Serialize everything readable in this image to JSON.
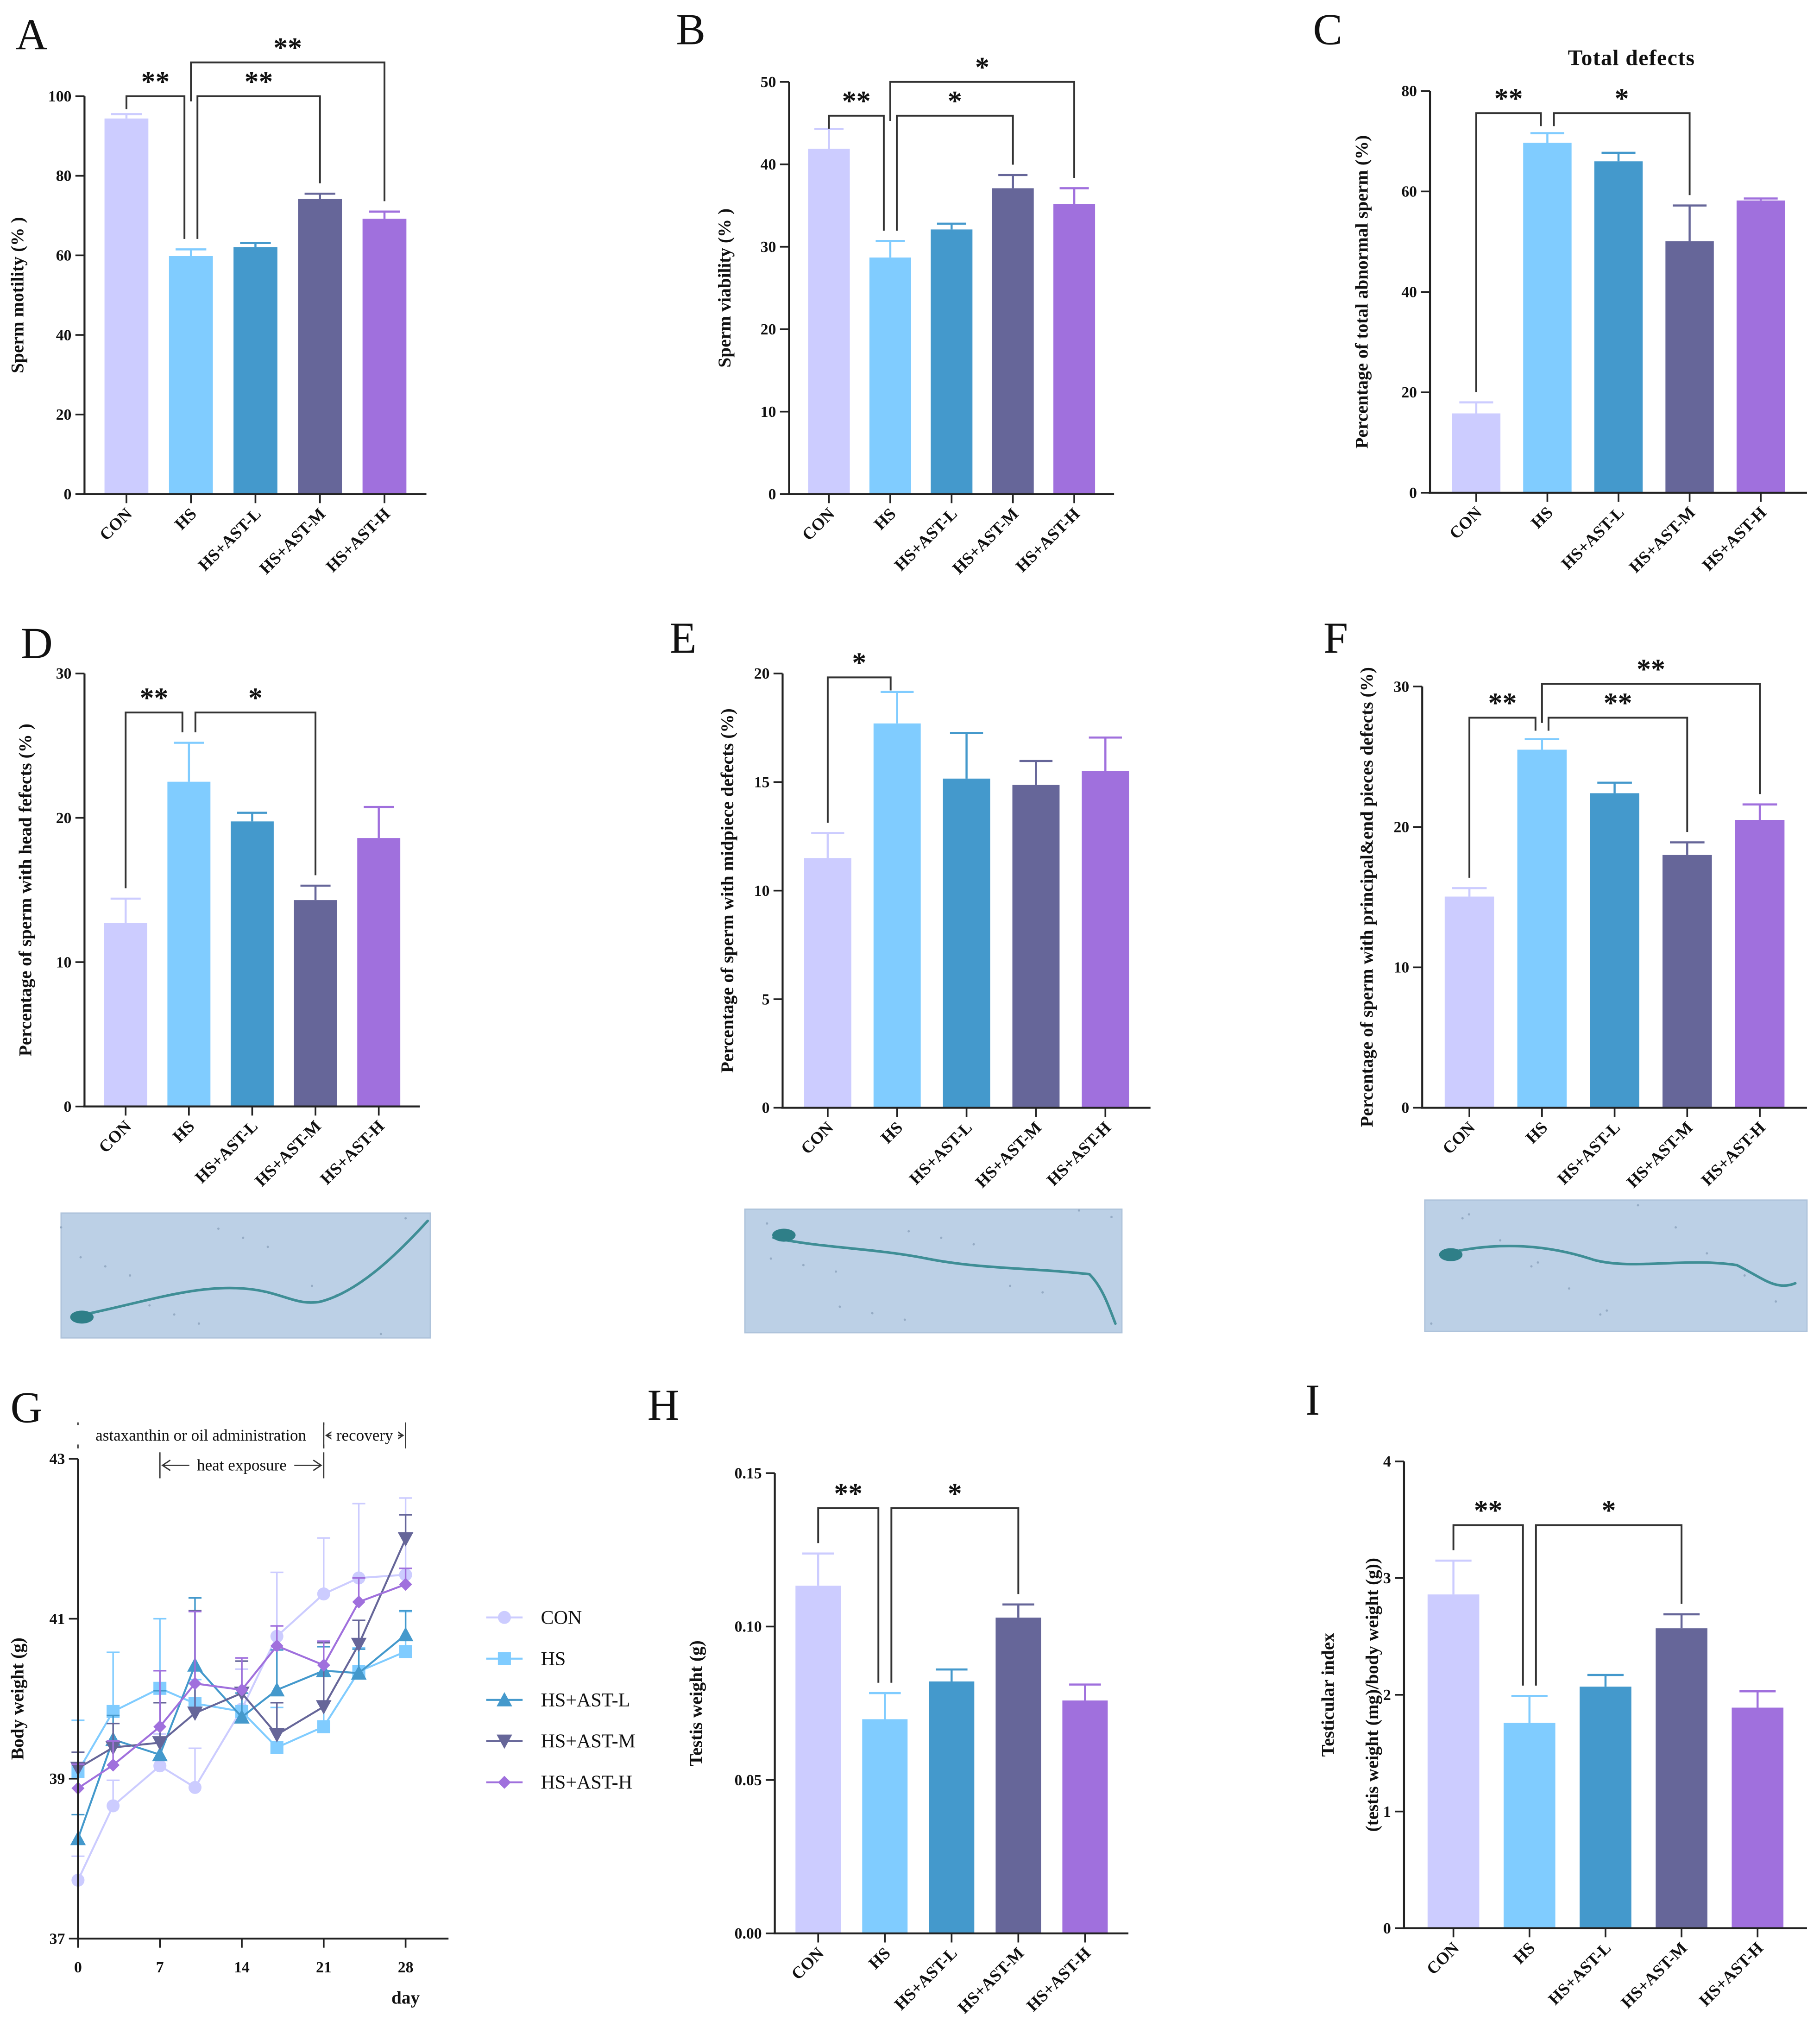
{
  "groups": [
    "CON",
    "HS",
    "HS+AST-L",
    "HS+AST-M",
    "HS+AST-H"
  ],
  "colors": {
    "CON": "#CCCCFF",
    "HS": "#80CCFF",
    "HS+AST-L": "#4499CC",
    "HS+AST-M": "#666699",
    "HS+AST-H": "#A070DD"
  },
  "chart_data": [
    {
      "panel": "A",
      "type": "bar",
      "title": "",
      "ylabel": [
        "Sperm motility (% )"
      ],
      "ylim": [
        0,
        100
      ],
      "ytick_labels": [
        "0",
        "20",
        "40",
        "60",
        "80",
        "100"
      ],
      "yticks": [
        0,
        20,
        40,
        60,
        80,
        100
      ],
      "categories": [
        "CON",
        "HS",
        "HS+AST-L",
        "HS+AST-M",
        "HS+AST-H"
      ],
      "values": [
        94.4,
        59.8,
        62.1,
        74.2,
        69.2
      ],
      "errors": [
        1.1,
        1.7,
        1.0,
        1.3,
        1.8
      ],
      "comparisons": [
        {
          "from": "CON",
          "to": "HS",
          "label": "**"
        },
        {
          "from": "HS",
          "to": "HS+AST-M",
          "label": "**"
        },
        {
          "from": "HS",
          "to": "HS+AST-H",
          "label": "**"
        }
      ]
    },
    {
      "panel": "B",
      "type": "bar",
      "title": "",
      "ylabel": [
        "Sperm viability (% )"
      ],
      "ylim": [
        0,
        50
      ],
      "ytick_labels": [
        "0",
        "10",
        "20",
        "30",
        "40",
        "50"
      ],
      "yticks": [
        0,
        10,
        20,
        30,
        40,
        50
      ],
      "categories": [
        "CON",
        "HS",
        "HS+AST-L",
        "HS+AST-M",
        "HS+AST-H"
      ],
      "values": [
        41.9,
        28.7,
        32.1,
        37.1,
        35.2
      ],
      "errors": [
        2.4,
        2.0,
        0.7,
        1.6,
        1.9
      ],
      "comparisons": [
        {
          "from": "CON",
          "to": "HS",
          "label": "**"
        },
        {
          "from": "HS",
          "to": "HS+AST-M",
          "label": "*"
        },
        {
          "from": "HS",
          "to": "HS+AST-H",
          "label": "*"
        }
      ]
    },
    {
      "panel": "C",
      "type": "bar",
      "title": "Total defects",
      "ylabel": [
        "Percentage of total abnormal sperm (%)"
      ],
      "ylim": [
        0,
        80
      ],
      "ytick_labels": [
        "0",
        "20",
        "40",
        "60",
        "80"
      ],
      "yticks": [
        0,
        20,
        40,
        60,
        80
      ],
      "categories": [
        "CON",
        "HS",
        "HS+AST-L",
        "HS+AST-M",
        "HS+AST-H"
      ],
      "values": [
        15.8,
        69.7,
        66.0,
        50.1,
        58.2
      ],
      "errors": [
        2.2,
        1.9,
        1.7,
        7.1,
        0.4
      ],
      "comparisons": [
        {
          "from": "CON",
          "to": "HS",
          "label": "**"
        },
        {
          "from": "HS",
          "to": "HS+AST-M",
          "label": "*"
        }
      ]
    },
    {
      "panel": "D",
      "type": "bar",
      "title": "",
      "ylabel": [
        "Percentage of sperm with head fefects (% )"
      ],
      "ylim": [
        0,
        30
      ],
      "ytick_labels": [
        "0",
        "10",
        "20",
        "30"
      ],
      "yticks": [
        0,
        10,
        20,
        30
      ],
      "categories": [
        "CON",
        "HS",
        "HS+AST-L",
        "HS+AST-M",
        "HS+AST-H"
      ],
      "values": [
        12.7,
        22.5,
        19.75,
        14.3,
        18.6
      ],
      "errors": [
        1.7,
        2.7,
        0.6,
        1.0,
        2.15
      ],
      "comparisons": [
        {
          "from": "CON",
          "to": "HS",
          "label": "**"
        },
        {
          "from": "HS",
          "to": "HS+AST-M",
          "label": "*"
        }
      ]
    },
    {
      "panel": "E",
      "type": "bar",
      "title": "",
      "ylabel": [
        "Percentage of sperm with midpiece defects (%)"
      ],
      "ylim": [
        0,
        20
      ],
      "ytick_labels": [
        "0",
        "5",
        "10",
        "15",
        "20"
      ],
      "yticks": [
        0,
        5,
        10,
        15,
        20
      ],
      "categories": [
        "CON",
        "HS",
        "HS+AST-L",
        "HS+AST-M",
        "HS+AST-H"
      ],
      "values": [
        11.5,
        17.7,
        15.16,
        14.87,
        15.5
      ],
      "errors": [
        1.15,
        1.45,
        2.1,
        1.1,
        1.55
      ],
      "comparisons": [
        {
          "from": "CON",
          "to": "HS",
          "label": "*"
        }
      ]
    },
    {
      "panel": "F",
      "type": "bar",
      "title": "",
      "ylabel": [
        "Percentage of sperm with principal&end pieces defects (%)"
      ],
      "ylim": [
        0,
        30
      ],
      "ytick_labels": [
        "0",
        "10",
        "20",
        "30"
      ],
      "yticks": [
        0,
        10,
        20,
        30
      ],
      "categories": [
        "CON",
        "HS",
        "HS+AST-L",
        "HS+AST-M",
        "HS+AST-H"
      ],
      "values": [
        15.04,
        25.5,
        22.4,
        18.0,
        20.5
      ],
      "errors": [
        0.6,
        0.75,
        0.75,
        0.9,
        1.1
      ],
      "comparisons": [
        {
          "from": "CON",
          "to": "HS",
          "label": "**"
        },
        {
          "from": "HS",
          "to": "HS+AST-M",
          "label": "**"
        },
        {
          "from": "HS",
          "to": "HS+AST-H",
          "label": "**"
        }
      ]
    },
    {
      "panel": "G",
      "type": "line",
      "title": "",
      "ylabel": [
        "Body weight (g)"
      ],
      "xlabel": "day",
      "x": [
        0,
        3,
        7,
        10,
        14,
        17,
        21,
        24,
        28
      ],
      "xticks": [
        0,
        7,
        14,
        21,
        28
      ],
      "xtick_labels": [
        "0",
        "7",
        "14",
        "21",
        "28"
      ],
      "ylim": [
        37,
        43
      ],
      "yticks": [
        37,
        39,
        41,
        43
      ],
      "ytick_labels": [
        "37",
        "39",
        "41",
        "43"
      ],
      "legend_position": "right",
      "series": [
        {
          "name": "CON",
          "marker": "circle",
          "values": [
            37.73,
            38.66,
            39.16,
            38.89,
            39.87,
            40.78,
            41.31,
            41.51,
            41.55
          ],
          "errors": [
            0.3,
            0.32,
            0.4,
            0.49,
            0.5,
            0.8,
            0.7,
            0.93,
            0.96
          ]
        },
        {
          "name": "HS",
          "marker": "square",
          "values": [
            39.09,
            39.84,
            40.13,
            39.94,
            39.84,
            39.39,
            39.65,
            40.34,
            40.59
          ],
          "errors": [
            0.64,
            0.74,
            0.87,
            0.3,
            0.3,
            0.5,
            0.3,
            0.3,
            0.5
          ]
        },
        {
          "name": "HS+AST-L",
          "marker": "triangle-up",
          "values": [
            38.25,
            39.49,
            39.3,
            40.42,
            39.77,
            40.11,
            40.35,
            40.32,
            40.8
          ],
          "errors": [
            0.3,
            0.3,
            0.8,
            0.84,
            0.3,
            0.5,
            0.3,
            0.3,
            0.3
          ]
        },
        {
          "name": "HS+AST-M",
          "marker": "triangle-down",
          "values": [
            39.13,
            39.39,
            39.45,
            39.82,
            40.07,
            39.55,
            39.9,
            40.68,
            42.0
          ],
          "errors": [
            0.2,
            0.3,
            0.5,
            1.28,
            0.4,
            0.4,
            0.8,
            0.3,
            0.3
          ]
        },
        {
          "name": "HS+AST-H",
          "marker": "diamond",
          "values": [
            38.88,
            39.17,
            39.65,
            40.19,
            40.11,
            40.66,
            40.42,
            41.21,
            41.43
          ],
          "errors": [
            0.3,
            0.3,
            0.7,
            0.9,
            0.4,
            0.25,
            0.3,
            0.3,
            0.2
          ]
        }
      ],
      "annotations": [
        {
          "text": "astaxanthin or oil administration",
          "from": 0,
          "to": 21
        },
        {
          "text": "recovery",
          "from": 21,
          "to": 28
        },
        {
          "text": "heat exposure",
          "from": 7,
          "to": 21
        }
      ]
    },
    {
      "panel": "H",
      "type": "bar",
      "title": "",
      "ylabel": [
        "Testis weight (g)"
      ],
      "ylim": [
        0,
        0.15
      ],
      "ytick_labels": [
        "0.00",
        "0.05",
        "0.10",
        "0.15"
      ],
      "yticks": [
        0,
        0.05,
        0.1,
        0.15
      ],
      "categories": [
        "CON",
        "HS",
        "HS+AST-L",
        "HS+AST-M",
        "HS+AST-H"
      ],
      "values": [
        0.1133,
        0.0698,
        0.0821,
        0.1029,
        0.0759
      ],
      "errors": [
        0.0105,
        0.0085,
        0.0039,
        0.0043,
        0.0052
      ],
      "comparisons": [
        {
          "from": "CON",
          "to": "HS",
          "label": "**"
        },
        {
          "from": "HS",
          "to": "HS+AST-M",
          "label": "*"
        }
      ]
    },
    {
      "panel": "I",
      "type": "bar",
      "title": "",
      "ylabel": [
        "Testicular index",
        "(testis weight (mg)/body weight (g))"
      ],
      "ylim": [
        0,
        4
      ],
      "ytick_labels": [
        "0",
        "1",
        "2",
        "3",
        "4"
      ],
      "yticks": [
        0,
        1,
        2,
        3,
        4
      ],
      "categories": [
        "CON",
        "HS",
        "HS+AST-L",
        "HS+AST-M",
        "HS+AST-H"
      ],
      "values": [
        2.86,
        1.76,
        2.07,
        2.57,
        1.89
      ],
      "errors": [
        0.29,
        0.23,
        0.1,
        0.12,
        0.14
      ],
      "comparisons": [
        {
          "from": "CON",
          "to": "HS",
          "label": "**"
        },
        {
          "from": "HS",
          "to": "HS+AST-M",
          "label": "*"
        }
      ]
    }
  ]
}
